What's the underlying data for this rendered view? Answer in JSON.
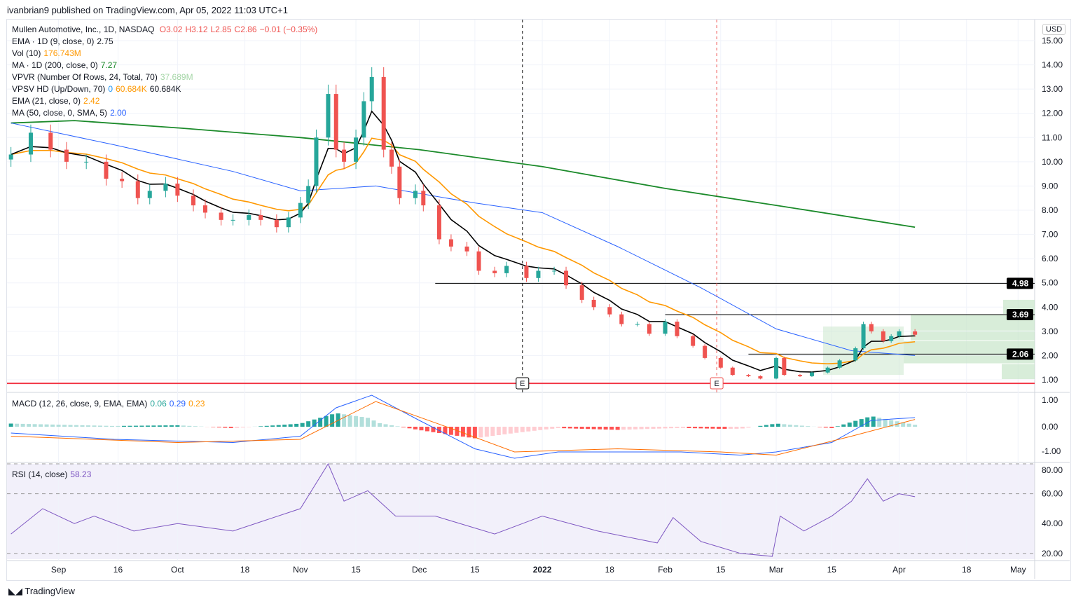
{
  "published": "ivanbrian9 published on TradingView.com, Apr 05, 2022 11:03 UTC+1",
  "brand": "TradingView",
  "currency": "USD",
  "legend": {
    "symbol": "Mullen Automotive, Inc., 1D, NASDAQ",
    "o": "O3.02",
    "h": "H3.12",
    "l": "L2.85",
    "c": "C2.86",
    "chg": "−0.01 (−0.35%)",
    "ema9": {
      "label": "EMA · 1D (9, close, 0)",
      "value": "2.75"
    },
    "vol": {
      "label": "Vol (10)",
      "value": "176.743M"
    },
    "ma200": {
      "label": "MA · 1D (200, close, 0)",
      "value": "7.27"
    },
    "vpvr": {
      "label": "VPVR (Number Of Rows, 24, Total, 70)",
      "value": "37.689M"
    },
    "vpsv": {
      "label": "VPSV HD (Up/Down, 70)",
      "v1": "0",
      "v2": "60.684K",
      "v3": "60.684K"
    },
    "ema21": {
      "label": "EMA (21, close, 0)",
      "value": "2.42"
    },
    "ma50": {
      "label": "MA (50, close, 0, SMA, 5)",
      "value": "2.00"
    },
    "macd": {
      "label": "MACD (12, 26, close, 9, EMA, EMA)",
      "v1": "0.06",
      "v2": "0.29",
      "v3": "0.23"
    },
    "rsi": {
      "label": "RSI (14, close)",
      "value": "58.23"
    }
  },
  "colors": {
    "up": "#26a69a",
    "down": "#ef5350",
    "ema9": "#000000",
    "ema21": "#ff9800",
    "ma50": "#2962ff",
    "ma200": "#1b8a2a",
    "rsi": "#7e57c2"
  },
  "chart_data": [
    {
      "type": "candlestick",
      "title": "Mullen Automotive, Inc., 1D, NASDAQ",
      "price_ticks": [
        "1.00",
        "2.00",
        "3.00",
        "4.00",
        "5.00",
        "6.00",
        "7.00",
        "8.00",
        "9.00",
        "10.00",
        "11.00",
        "12.00",
        "13.00",
        "14.00",
        "15.00"
      ],
      "ylim": [
        1,
        15
      ],
      "x_ticks": [
        [
          "2021-09-01",
          "Sep"
        ],
        [
          "2021-09-16",
          "16"
        ],
        [
          "2021-10-01",
          "Oct"
        ],
        [
          "2021-10-18",
          "18"
        ],
        [
          "2021-11-01",
          "Nov"
        ],
        [
          "2021-11-15",
          "15"
        ],
        [
          "2021-12-01",
          "Dec"
        ],
        [
          "2021-12-15",
          "15"
        ],
        [
          "2022-01-01",
          "2022"
        ],
        [
          "2022-01-18",
          "18"
        ],
        [
          "2022-02-01",
          "Feb"
        ],
        [
          "2022-02-15",
          "15"
        ],
        [
          "2022-03-01",
          "Mar"
        ],
        [
          "2022-03-15",
          "15"
        ],
        [
          "2022-04-01",
          "Apr"
        ],
        [
          "2022-04-18",
          "18"
        ],
        [
          "2022-05-01",
          "May"
        ]
      ],
      "close": [
        [
          "2021-08-20",
          10.3
        ],
        [
          "2021-08-25",
          11.2
        ],
        [
          "2021-08-30",
          10.5
        ],
        [
          "2021-09-03",
          10.0
        ],
        [
          "2021-09-08",
          10.0
        ],
        [
          "2021-09-13",
          9.3
        ],
        [
          "2021-09-17",
          9.2
        ],
        [
          "2021-09-21",
          8.5
        ],
        [
          "2021-09-24",
          8.8
        ],
        [
          "2021-09-28",
          9.1
        ],
        [
          "2021-10-01",
          8.6
        ],
        [
          "2021-10-05",
          8.2
        ],
        [
          "2021-10-08",
          7.9
        ],
        [
          "2021-10-12",
          7.6
        ],
        [
          "2021-10-15",
          7.6
        ],
        [
          "2021-10-19",
          7.8
        ],
        [
          "2021-10-22",
          7.6
        ],
        [
          "2021-10-26",
          7.3
        ],
        [
          "2021-10-29",
          7.7
        ],
        [
          "2021-11-01",
          8.3
        ],
        [
          "2021-11-03",
          9.0
        ],
        [
          "2021-11-05",
          11.0
        ],
        [
          "2021-11-08",
          12.8
        ],
        [
          "2021-11-10",
          10.5
        ],
        [
          "2021-11-12",
          10.0
        ],
        [
          "2021-11-15",
          11.0
        ],
        [
          "2021-11-17",
          12.5
        ],
        [
          "2021-11-19",
          13.5
        ],
        [
          "2021-11-22",
          10.5
        ],
        [
          "2021-11-24",
          9.8
        ],
        [
          "2021-11-26",
          8.5
        ],
        [
          "2021-11-30",
          8.8
        ],
        [
          "2021-12-02",
          8.2
        ],
        [
          "2021-12-06",
          6.8
        ],
        [
          "2021-12-09",
          6.5
        ],
        [
          "2021-12-13",
          6.3
        ],
        [
          "2021-12-16",
          5.5
        ],
        [
          "2021-12-20",
          5.4
        ],
        [
          "2021-12-23",
          5.7
        ],
        [
          "2021-12-28",
          5.2
        ],
        [
          "2021-12-31",
          5.5
        ],
        [
          "2022-01-04",
          5.5
        ],
        [
          "2022-01-07",
          4.9
        ],
        [
          "2022-01-11",
          4.3
        ],
        [
          "2022-01-14",
          4.0
        ],
        [
          "2022-01-18",
          3.7
        ],
        [
          "2022-01-21",
          3.3
        ],
        [
          "2022-01-25",
          3.3
        ],
        [
          "2022-01-28",
          2.9
        ],
        [
          "2022-02-01",
          3.4
        ],
        [
          "2022-02-04",
          2.8
        ],
        [
          "2022-02-08",
          2.4
        ],
        [
          "2022-02-11",
          1.9
        ],
        [
          "2022-02-15",
          1.5
        ],
        [
          "2022-02-18",
          1.2
        ],
        [
          "2022-02-22",
          1.15
        ],
        [
          "2022-02-25",
          1.05
        ],
        [
          "2022-03-01",
          1.9
        ],
        [
          "2022-03-03",
          1.2
        ],
        [
          "2022-03-07",
          1.15
        ],
        [
          "2022-03-10",
          1.3
        ],
        [
          "2022-03-14",
          1.5
        ],
        [
          "2022-03-17",
          1.8
        ],
        [
          "2022-03-21",
          2.3
        ],
        [
          "2022-03-23",
          3.3
        ],
        [
          "2022-03-25",
          3.0
        ],
        [
          "2022-03-28",
          2.6
        ],
        [
          "2022-03-30",
          2.8
        ],
        [
          "2022-04-01",
          3.0
        ],
        [
          "2022-04-05",
          2.86
        ]
      ],
      "ma200": [
        [
          "2021-08-20",
          11.6
        ],
        [
          "2021-09-05",
          11.7
        ],
        [
          "2021-10-01",
          11.4
        ],
        [
          "2021-11-01",
          11.0
        ],
        [
          "2021-12-01",
          10.5
        ],
        [
          "2022-01-01",
          9.8
        ],
        [
          "2022-02-01",
          8.9
        ],
        [
          "2022-03-01",
          8.2
        ],
        [
          "2022-04-05",
          7.3
        ]
      ],
      "ma50": [
        [
          "2021-08-20",
          11.6
        ],
        [
          "2021-09-15",
          10.7
        ],
        [
          "2021-10-15",
          9.6
        ],
        [
          "2021-11-01",
          8.8
        ],
        [
          "2021-11-20",
          9.0
        ],
        [
          "2021-12-15",
          8.3
        ],
        [
          "2022-01-01",
          7.9
        ],
        [
          "2022-01-20",
          6.5
        ],
        [
          "2022-02-10",
          4.8
        ],
        [
          "2022-03-01",
          3.1
        ],
        [
          "2022-03-20",
          2.2
        ],
        [
          "2022-04-05",
          2.0
        ]
      ],
      "levels": [
        {
          "date": "2021-12-05",
          "value": 4.98,
          "label": "4.98"
        },
        {
          "date": "2022-02-01",
          "value": 3.69,
          "label": "3.69"
        },
        {
          "date": "2022-02-22",
          "value": 2.06,
          "label": "2.06"
        }
      ],
      "support_line": 0.85,
      "earnings": [
        {
          "date": "2021-12-27",
          "label": "E",
          "line": "#000000"
        },
        {
          "date": "2022-02-14",
          "label": "E",
          "line": "#ef5350"
        }
      ]
    },
    {
      "type": "macd",
      "ylim": [
        -1,
        1
      ],
      "ticks": [
        "1.00",
        "0.00",
        "-1.00"
      ],
      "macd": [
        [
          "2021-08-20",
          -0.2
        ],
        [
          "2021-09-15",
          -0.4
        ],
        [
          "2021-10-15",
          -0.5
        ],
        [
          "2021-11-01",
          -0.3
        ],
        [
          "2021-11-10",
          0.6
        ],
        [
          "2021-11-19",
          1.0
        ],
        [
          "2021-12-01",
          0.2
        ],
        [
          "2021-12-15",
          -0.7
        ],
        [
          "2021-12-25",
          -1.0
        ],
        [
          "2022-01-05",
          -0.8
        ],
        [
          "2022-01-20",
          -0.8
        ],
        [
          "2022-02-05",
          -0.8
        ],
        [
          "2022-02-20",
          -0.9
        ],
        [
          "2022-03-01",
          -0.8
        ],
        [
          "2022-03-15",
          -0.5
        ],
        [
          "2022-03-25",
          0.2
        ],
        [
          "2022-04-05",
          0.29
        ]
      ],
      "signal": [
        [
          "2021-08-20",
          -0.3
        ],
        [
          "2021-10-01",
          -0.5
        ],
        [
          "2021-11-01",
          -0.4
        ],
        [
          "2021-11-20",
          0.8
        ],
        [
          "2021-12-10",
          -0.1
        ],
        [
          "2021-12-25",
          -0.8
        ],
        [
          "2022-01-20",
          -0.7
        ],
        [
          "2022-02-15",
          -0.8
        ],
        [
          "2022-03-01",
          -0.9
        ],
        [
          "2022-03-20",
          -0.3
        ],
        [
          "2022-04-05",
          0.23
        ]
      ]
    },
    {
      "type": "line",
      "name": "RSI",
      "ylim": [
        20,
        80
      ],
      "ticks": [
        "80.00",
        "60.00",
        "40.00",
        "20.00"
      ],
      "rsi": [
        [
          "2021-08-20",
          33
        ],
        [
          "2021-08-28",
          50
        ],
        [
          "2021-09-05",
          40
        ],
        [
          "2021-09-10",
          45
        ],
        [
          "2021-09-20",
          35
        ],
        [
          "2021-10-01",
          40
        ],
        [
          "2021-10-15",
          35
        ],
        [
          "2021-11-01",
          50
        ],
        [
          "2021-11-08",
          80
        ],
        [
          "2021-11-12",
          55
        ],
        [
          "2021-11-18",
          62
        ],
        [
          "2021-11-25",
          45
        ],
        [
          "2021-12-05",
          45
        ],
        [
          "2021-12-20",
          33
        ],
        [
          "2022-01-01",
          45
        ],
        [
          "2022-01-15",
          35
        ],
        [
          "2022-01-30",
          27
        ],
        [
          "2022-02-03",
          44
        ],
        [
          "2022-02-10",
          28
        ],
        [
          "2022-02-20",
          20
        ],
        [
          "2022-02-28",
          18
        ],
        [
          "2022-03-02",
          45
        ],
        [
          "2022-03-08",
          35
        ],
        [
          "2022-03-15",
          45
        ],
        [
          "2022-03-20",
          55
        ],
        [
          "2022-03-24",
          70
        ],
        [
          "2022-03-28",
          55
        ],
        [
          "2022-04-01",
          60
        ],
        [
          "2022-04-05",
          58
        ]
      ]
    }
  ]
}
